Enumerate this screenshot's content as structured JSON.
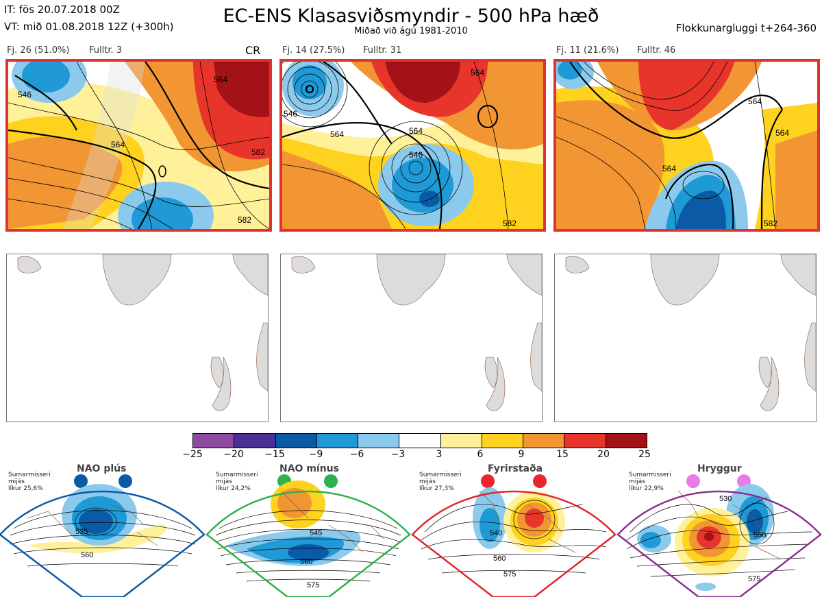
{
  "header": {
    "init_time": "IT: fös 20.07.2018 00Z",
    "valid_time": "VT: mið 01.08.2018 12Z  (+300h)",
    "title": "EC-ENS Klasasviðsmyndir - 500 hPa hæð",
    "subtitle": "Miðað við ágú 1981-2010",
    "window": "Flokkunargluggi t+264-360"
  },
  "clusters": [
    {
      "label": "Fj. 26 (51.0%)",
      "rep": "Fulltr. 3",
      "tag": "CR",
      "contours": [
        "546",
        "564",
        "582",
        "582",
        "564"
      ]
    },
    {
      "label": "Fj. 14 (27.5%)",
      "rep": "Fulltr. 31",
      "tag": "",
      "contours": [
        "546",
        "564",
        "564",
        "546",
        "564",
        "582"
      ]
    },
    {
      "label": "Fj. 11 (21.6%)",
      "rep": "Fulltr. 46",
      "tag": "",
      "contours": [
        "564",
        "564",
        "564",
        "582"
      ]
    }
  ],
  "colorbar": {
    "ticks": [
      "−25",
      "−20",
      "−15",
      "−9",
      "−6",
      "−3",
      "3",
      "6",
      "9",
      "15",
      "20",
      "25"
    ],
    "colors": [
      "#8e4aa0",
      "#4a2f96",
      "#0a5aa6",
      "#1f9ad6",
      "#8ccaed",
      "#ffffff",
      "#fff199",
      "#ffd21f",
      "#f29533",
      "#e8352c",
      "#a31217"
    ]
  },
  "regimes": [
    {
      "title": "NAO plús",
      "note": [
        "Sumarmisseri",
        "mijás",
        "líkur 25,6%"
      ],
      "color": "#0a5aa6",
      "dot": "#0a5aa6",
      "contours": [
        "535",
        "560"
      ]
    },
    {
      "title": "NAO mínus",
      "note": [
        "Sumarmisseri",
        "mijás",
        "líkur 24,2%"
      ],
      "color": "#28a745",
      "dot": "#2db14a",
      "contours": [
        "545",
        "560",
        "575"
      ]
    },
    {
      "title": "Fyrirstaða",
      "note": [
        "Sumarmisseri",
        "mijás",
        "líkur 27,3%"
      ],
      "color": "#e0262b",
      "dot": "#e8262b",
      "contours": [
        "540",
        "560",
        "575"
      ]
    },
    {
      "title": "Hryggur",
      "note": [
        "Sumarmisseri",
        "mijás",
        "líkur 22,9%"
      ],
      "color": "#8b2f8f",
      "dot": "#e77be8",
      "contours": [
        "530",
        "550",
        "575"
      ]
    }
  ]
}
